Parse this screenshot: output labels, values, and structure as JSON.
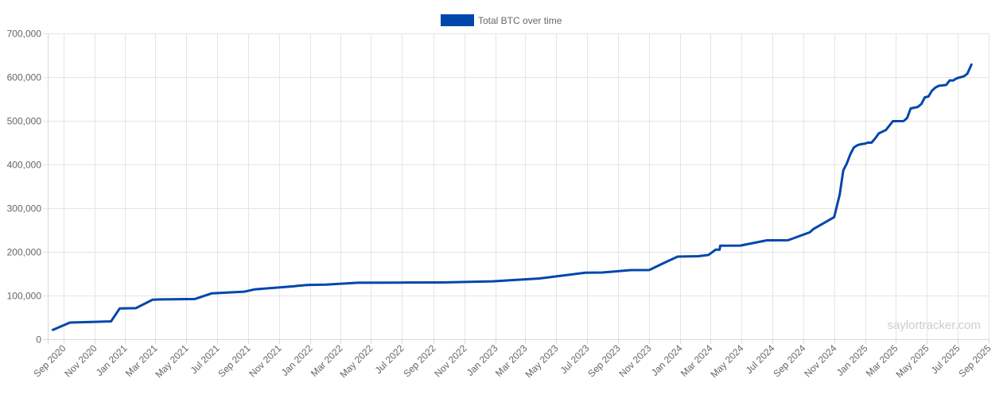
{
  "chart_data": {
    "type": "line",
    "legend": {
      "label": "Total BTC over time",
      "placement": "top-center"
    },
    "watermark": "saylortracker.com",
    "colors": {
      "series": "#0047ab",
      "grid": "#e5e5e5",
      "text": "#666666"
    },
    "grid": true,
    "ylim": [
      0,
      700000
    ],
    "y_ticks": [
      {
        "value": 0,
        "label": "0"
      },
      {
        "value": 100000,
        "label": "100,000"
      },
      {
        "value": 200000,
        "label": "200,000"
      },
      {
        "value": 300000,
        "label": "300,000"
      },
      {
        "value": 400000,
        "label": "400,000"
      },
      {
        "value": 500000,
        "label": "500,000"
      },
      {
        "value": 600000,
        "label": "600,000"
      },
      {
        "value": 700000,
        "label": "700,000"
      }
    ],
    "x_range": [
      "2020-08-01",
      "2025-09-01"
    ],
    "x_ticks": [
      {
        "date": "2020-09-01",
        "label": "Sep 2020"
      },
      {
        "date": "2020-11-01",
        "label": "Nov 2020"
      },
      {
        "date": "2021-01-01",
        "label": "Jan 2021"
      },
      {
        "date": "2021-03-01",
        "label": "Mar 2021"
      },
      {
        "date": "2021-05-01",
        "label": "May 2021"
      },
      {
        "date": "2021-07-01",
        "label": "Jul 2021"
      },
      {
        "date": "2021-09-01",
        "label": "Sep 2021"
      },
      {
        "date": "2021-11-01",
        "label": "Nov 2021"
      },
      {
        "date": "2022-01-01",
        "label": "Jan 2022"
      },
      {
        "date": "2022-03-01",
        "label": "Mar 2022"
      },
      {
        "date": "2022-05-01",
        "label": "May 2022"
      },
      {
        "date": "2022-07-01",
        "label": "Jul 2022"
      },
      {
        "date": "2022-09-01",
        "label": "Sep 2022"
      },
      {
        "date": "2022-11-01",
        "label": "Nov 2022"
      },
      {
        "date": "2023-01-01",
        "label": "Jan 2023"
      },
      {
        "date": "2023-03-01",
        "label": "Mar 2023"
      },
      {
        "date": "2023-05-01",
        "label": "May 2023"
      },
      {
        "date": "2023-07-01",
        "label": "Jul 2023"
      },
      {
        "date": "2023-09-01",
        "label": "Sep 2023"
      },
      {
        "date": "2023-11-01",
        "label": "Nov 2023"
      },
      {
        "date": "2024-01-01",
        "label": "Jan 2024"
      },
      {
        "date": "2024-03-01",
        "label": "Mar 2024"
      },
      {
        "date": "2024-05-01",
        "label": "May 2024"
      },
      {
        "date": "2024-07-01",
        "label": "Jul 2024"
      },
      {
        "date": "2024-09-01",
        "label": "Sep 2024"
      },
      {
        "date": "2024-11-01",
        "label": "Nov 2024"
      },
      {
        "date": "2025-01-01",
        "label": "Jan 2025"
      },
      {
        "date": "2025-03-01",
        "label": "Mar 2025"
      },
      {
        "date": "2025-05-01",
        "label": "May 2025"
      },
      {
        "date": "2025-07-01",
        "label": "Jul 2025"
      },
      {
        "date": "2025-09-01",
        "label": "Sep 2025"
      }
    ],
    "series": [
      {
        "name": "Total BTC over time",
        "points": [
          {
            "x": "2020-08-11",
            "y": 21454
          },
          {
            "x": "2020-09-14",
            "y": 38250
          },
          {
            "x": "2020-12-04",
            "y": 40824
          },
          {
            "x": "2020-12-21",
            "y": 70470
          },
          {
            "x": "2021-01-22",
            "y": 71079
          },
          {
            "x": "2021-02-24",
            "y": 90531
          },
          {
            "x": "2021-03-12",
            "y": 91064
          },
          {
            "x": "2021-05-18",
            "y": 92079
          },
          {
            "x": "2021-06-21",
            "y": 105085
          },
          {
            "x": "2021-08-24",
            "y": 108992
          },
          {
            "x": "2021-09-13",
            "y": 114042
          },
          {
            "x": "2021-11-29",
            "y": 121044
          },
          {
            "x": "2021-12-09",
            "y": 122478
          },
          {
            "x": "2021-12-30",
            "y": 124391
          },
          {
            "x": "2022-02-01",
            "y": 125051
          },
          {
            "x": "2022-04-05",
            "y": 129218
          },
          {
            "x": "2022-06-28",
            "y": 129699
          },
          {
            "x": "2022-09-20",
            "y": 130000
          },
          {
            "x": "2022-12-27",
            "y": 132500
          },
          {
            "x": "2023-03-27",
            "y": 138955
          },
          {
            "x": "2023-04-05",
            "y": 140000
          },
          {
            "x": "2023-06-28",
            "y": 152333
          },
          {
            "x": "2023-08-01",
            "y": 152800
          },
          {
            "x": "2023-09-25",
            "y": 158245
          },
          {
            "x": "2023-11-01",
            "y": 158400
          },
          {
            "x": "2023-11-30",
            "y": 174530
          },
          {
            "x": "2023-12-27",
            "y": 189150
          },
          {
            "x": "2024-02-06",
            "y": 190000
          },
          {
            "x": "2024-02-26",
            "y": 193000
          },
          {
            "x": "2024-03-11",
            "y": 205000
          },
          {
            "x": "2024-03-19",
            "y": 205000
          },
          {
            "x": "2024-03-20",
            "y": 214246
          },
          {
            "x": "2024-04-29",
            "y": 214400
          },
          {
            "x": "2024-06-20",
            "y": 226331
          },
          {
            "x": "2024-08-01",
            "y": 226500
          },
          {
            "x": "2024-09-13",
            "y": 244800
          },
          {
            "x": "2024-09-20",
            "y": 252220
          },
          {
            "x": "2024-10-31",
            "y": 279420
          },
          {
            "x": "2024-11-11",
            "y": 331200
          },
          {
            "x": "2024-11-18",
            "y": 386700
          },
          {
            "x": "2024-11-25",
            "y": 402100
          },
          {
            "x": "2024-12-02",
            "y": 423650
          },
          {
            "x": "2024-12-09",
            "y": 439000
          },
          {
            "x": "2024-12-16",
            "y": 444262
          },
          {
            "x": "2024-12-23",
            "y": 446400
          },
          {
            "x": "2024-12-30",
            "y": 447470
          },
          {
            "x": "2025-01-06",
            "y": 449950
          },
          {
            "x": "2025-01-13",
            "y": 450000
          },
          {
            "x": "2025-01-21",
            "y": 461000
          },
          {
            "x": "2025-01-27",
            "y": 471107
          },
          {
            "x": "2025-02-10",
            "y": 478740
          },
          {
            "x": "2025-02-24",
            "y": 499096
          },
          {
            "x": "2025-03-17",
            "y": 499226
          },
          {
            "x": "2025-03-24",
            "y": 506137
          },
          {
            "x": "2025-03-31",
            "y": 528185
          },
          {
            "x": "2025-04-14",
            "y": 531644
          },
          {
            "x": "2025-04-21",
            "y": 538200
          },
          {
            "x": "2025-04-28",
            "y": 553555
          },
          {
            "x": "2025-05-05",
            "y": 555450
          },
          {
            "x": "2025-05-12",
            "y": 568840
          },
          {
            "x": "2025-05-19",
            "y": 576230
          },
          {
            "x": "2025-05-26",
            "y": 580250
          },
          {
            "x": "2025-06-02",
            "y": 580955
          },
          {
            "x": "2025-06-09",
            "y": 582000
          },
          {
            "x": "2025-06-16",
            "y": 592100
          },
          {
            "x": "2025-06-23",
            "y": 592345
          },
          {
            "x": "2025-06-30",
            "y": 597325
          },
          {
            "x": "2025-07-14",
            "y": 601550
          },
          {
            "x": "2025-07-21",
            "y": 607770
          },
          {
            "x": "2025-07-29",
            "y": 628791
          }
        ]
      }
    ]
  }
}
